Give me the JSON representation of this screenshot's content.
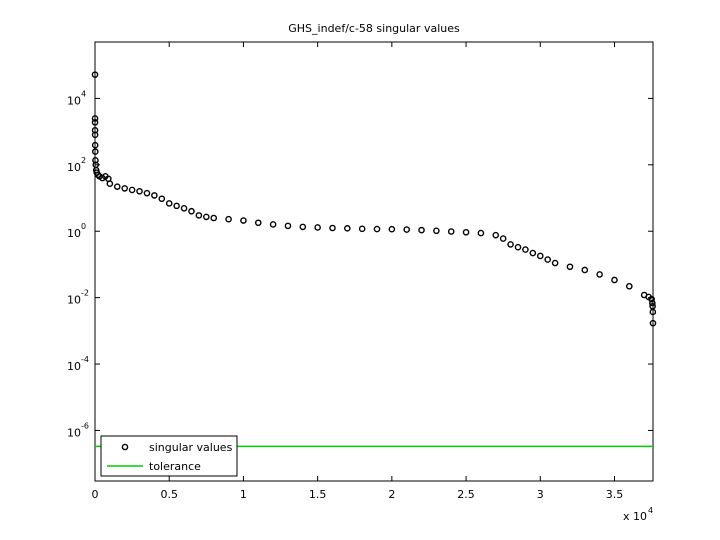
{
  "chart_data": {
    "type": "scatter",
    "title": "GHS_indef/c-58 singular values",
    "log_y": true,
    "xlim": [
      0,
      37595
    ],
    "ylim": [
      3e-08,
      500000
    ],
    "xticks": [
      0,
      {
        "value": 5000,
        "label": "0.5"
      },
      {
        "value": 10000,
        "label": "1"
      },
      {
        "value": 15000,
        "label": "1.5"
      },
      {
        "value": 20000,
        "label": "2"
      },
      {
        "value": 25000,
        "label": "2.5"
      },
      {
        "value": 30000,
        "label": "3"
      },
      {
        "value": 35000,
        "label": "3.5"
      }
    ],
    "x_multiplier": {
      "label": "x 10",
      "sup": "4"
    },
    "yticks": [
      {
        "value": 1e-06,
        "label": "10",
        "sup": "-6"
      },
      {
        "value": 0.0001,
        "label": "10",
        "sup": "-4"
      },
      {
        "value": 0.01,
        "label": "10",
        "sup": "-2"
      },
      {
        "value": 1,
        "label": "10",
        "sup": "0"
      },
      {
        "value": 100,
        "label": "10",
        "sup": "2"
      },
      {
        "value": 10000,
        "label": "10",
        "sup": "4"
      }
    ],
    "legend": "lower left",
    "series": [
      {
        "name": "singular values",
        "style": "marker",
        "color": "#000000",
        "x": [
          1,
          2,
          3,
          5,
          8,
          12,
          20,
          30,
          50,
          80,
          120,
          200,
          300,
          500,
          700,
          900,
          1000,
          1500,
          2000,
          2500,
          3000,
          3500,
          4000,
          4500,
          5000,
          5500,
          6000,
          6500,
          7000,
          7500,
          8000,
          9000,
          10000,
          11000,
          12000,
          13000,
          14000,
          15000,
          16000,
          17000,
          18000,
          19000,
          20000,
          21000,
          22000,
          23000,
          24000,
          25000,
          26000,
          27000,
          27500,
          28000,
          28500,
          29000,
          29500,
          30000,
          30500,
          31000,
          32000,
          33000,
          34000,
          35000,
          36000,
          37000,
          37300,
          37500,
          37550,
          37570,
          37585,
          37595
        ],
        "values": [
          52000,
          2500,
          1900,
          1100,
          800,
          390,
          250,
          137,
          100,
          69,
          58,
          50,
          45,
          40,
          45,
          38,
          27,
          22,
          19.5,
          17.5,
          16,
          14,
          12,
          9.5,
          6.9,
          5.8,
          4.9,
          4,
          3.0,
          2.7,
          2.5,
          2.3,
          2.1,
          1.8,
          1.6,
          1.45,
          1.35,
          1.3,
          1.25,
          1.22,
          1.18,
          1.16,
          1.15,
          1.12,
          1.08,
          1.03,
          0.98,
          0.93,
          0.88,
          0.76,
          0.6,
          0.4,
          0.33,
          0.28,
          0.22,
          0.18,
          0.14,
          0.11,
          0.085,
          0.068,
          0.05,
          0.034,
          0.022,
          0.012,
          0.0105,
          0.009,
          0.0069,
          0.0055,
          0.0037,
          0.0017
        ]
      },
      {
        "name": "tolerance",
        "style": "line",
        "color": "#00cc00",
        "x": [
          0,
          37595
        ],
        "values": [
          3.3e-07,
          3.3e-07
        ]
      }
    ]
  }
}
